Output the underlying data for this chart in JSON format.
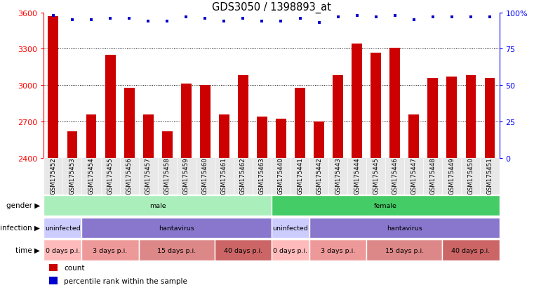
{
  "title": "GDS3050 / 1398893_at",
  "samples": [
    "GSM175452",
    "GSM175453",
    "GSM175454",
    "GSM175455",
    "GSM175456",
    "GSM175457",
    "GSM175458",
    "GSM175459",
    "GSM175460",
    "GSM175461",
    "GSM175462",
    "GSM175463",
    "GSM175440",
    "GSM175441",
    "GSM175442",
    "GSM175443",
    "GSM175444",
    "GSM175445",
    "GSM175446",
    "GSM175447",
    "GSM175448",
    "GSM175449",
    "GSM175450",
    "GSM175451"
  ],
  "counts": [
    3570,
    2620,
    2760,
    3250,
    2980,
    2760,
    2620,
    3010,
    3000,
    2760,
    3080,
    2740,
    2720,
    2980,
    2700,
    3080,
    3340,
    3270,
    3310,
    2760,
    3060,
    3070,
    3080,
    3060
  ],
  "percentile_vals": [
    98,
    95,
    95,
    96,
    96,
    94,
    94,
    97,
    96,
    94,
    96,
    94,
    94,
    96,
    93,
    97,
    98,
    97,
    98,
    95,
    97,
    97,
    97,
    97
  ],
  "ylim": [
    2400,
    3600
  ],
  "yticks_left": [
    2400,
    2700,
    3000,
    3300,
    3600
  ],
  "yticks_right": [
    0,
    25,
    50,
    75,
    100
  ],
  "gridlines": [
    2700,
    3000,
    3300
  ],
  "bar_color": "#cc0000",
  "percentile_color": "#0000cc",
  "gender_groups": [
    {
      "label": "male",
      "start": 0,
      "end": 11,
      "color": "#aaeebb"
    },
    {
      "label": "female",
      "start": 12,
      "end": 23,
      "color": "#44cc66"
    }
  ],
  "infection_groups": [
    {
      "label": "uninfected",
      "start": 0,
      "end": 1,
      "color": "#ccccff"
    },
    {
      "label": "hantavirus",
      "start": 2,
      "end": 11,
      "color": "#8877cc"
    },
    {
      "label": "uninfected",
      "start": 12,
      "end": 13,
      "color": "#ccccff"
    },
    {
      "label": "hantavirus",
      "start": 14,
      "end": 23,
      "color": "#8877cc"
    }
  ],
  "time_groups": [
    {
      "label": "0 days p.i.",
      "start": 0,
      "end": 1,
      "color": "#ffbbbb"
    },
    {
      "label": "3 days p.i.",
      "start": 2,
      "end": 4,
      "color": "#ee9999"
    },
    {
      "label": "15 days p.i.",
      "start": 5,
      "end": 8,
      "color": "#dd8888"
    },
    {
      "label": "40 days p.i.",
      "start": 9,
      "end": 11,
      "color": "#cc6666"
    },
    {
      "label": "0 days p.i.",
      "start": 12,
      "end": 13,
      "color": "#ffbbbb"
    },
    {
      "label": "3 days p.i.",
      "start": 14,
      "end": 16,
      "color": "#ee9999"
    },
    {
      "label": "15 days p.i.",
      "start": 17,
      "end": 20,
      "color": "#dd8888"
    },
    {
      "label": "40 days p.i.",
      "start": 21,
      "end": 23,
      "color": "#cc6666"
    }
  ],
  "legend_items": [
    {
      "label": "count",
      "color": "#cc0000"
    },
    {
      "label": "percentile rank within the sample",
      "color": "#0000cc"
    }
  ]
}
